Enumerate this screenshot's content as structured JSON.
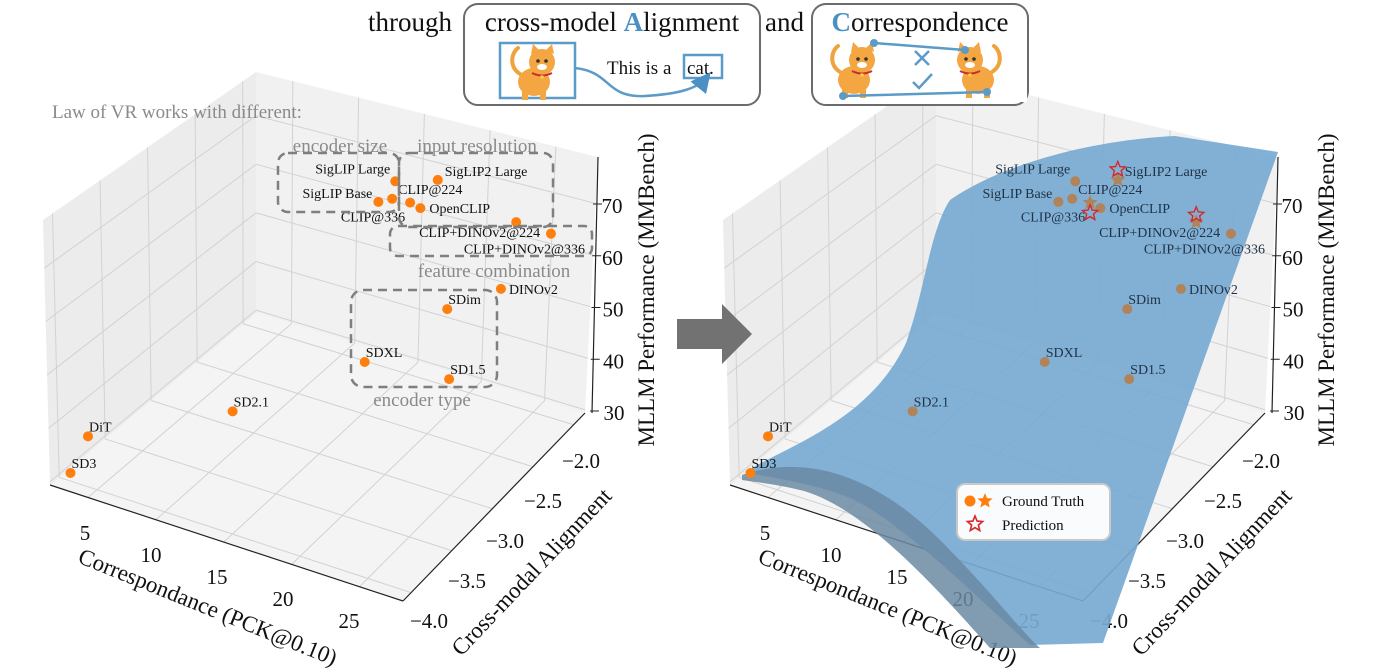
{
  "header": {
    "lead": "through",
    "box1_prefix": "cross-model ",
    "box1_highlight": "A",
    "box1_rest": "lignment",
    "connector": "and",
    "box2_highlight": "C",
    "box2_rest": "orrespondence",
    "caption_text": "This is a",
    "caption_word": "cat."
  },
  "annotations": {
    "intro": "Law of VR works with different:",
    "groups": [
      "encoder size",
      "input resolution",
      "feature combination",
      "encoder type"
    ]
  },
  "legend": {
    "ground_truth": "Ground Truth",
    "prediction": "Prediction"
  },
  "colors": {
    "point": "#ff7f0e",
    "point_under_surface": "#b0835a",
    "prediction": "#d62728",
    "surface": "#77aad1",
    "accent": "#4a90c2",
    "arrow": "#727272"
  },
  "chart_data": [
    {
      "type": "scatter3d",
      "title": "",
      "xlabel": "Correspondance (PCK@0.10)",
      "ylabel": "Cross-modal Alignment",
      "zlabel": "MLLM Performance (MMBench)",
      "xticks": [
        "5",
        "10",
        "15",
        "20",
        "25"
      ],
      "xtick_values": [
        5,
        10,
        15,
        20,
        25
      ],
      "yticks": [
        "−4.0",
        "−3.5",
        "−3.0",
        "−2.5",
        "−2.0"
      ],
      "ytick_values": [
        -4.0,
        -3.5,
        -3.0,
        -2.5,
        -2.0
      ],
      "zticks": [
        "30",
        "40",
        "50",
        "60",
        "70"
      ],
      "ztick_values": [
        30,
        40,
        50,
        60,
        70
      ],
      "xlim": [
        2.2,
        28.2
      ],
      "ylim": [
        -4.1,
        -1.86
      ],
      "zlim": [
        29.4,
        79
      ],
      "grid": true,
      "points": [
        {
          "name": "SD3",
          "x": 2.8,
          "y": -3.98,
          "z": 34
        },
        {
          "name": "DiT",
          "x": 3.5,
          "y": -3.87,
          "z": 40
        },
        {
          "name": "SD2.1",
          "x": 9.9,
          "y": -3.05,
          "z": 38
        },
        {
          "name": "SDXL",
          "x": 17.0,
          "y": -2.48,
          "z": 45
        },
        {
          "name": "SD1.5",
          "x": 21.5,
          "y": -2.11,
          "z": 40
        },
        {
          "name": "SDim",
          "x": 21.9,
          "y": -2.19,
          "z": 55
        },
        {
          "name": "DINOv2",
          "x": 25.5,
          "y": -2.06,
          "z": 60
        },
        {
          "name": "CLIP+DINOv2@336",
          "x": 28.3,
          "y": -1.86,
          "z": 70
        },
        {
          "name": "CLIP+DINOv2@224",
          "x": 25.8,
          "y": -1.92,
          "z": 71
        },
        {
          "name": "CLIP@336",
          "x": 18.5,
          "y": -2.15,
          "z": 72
        },
        {
          "name": "OpenCLIP",
          "x": 18.8,
          "y": -2.07,
          "z": 70
        },
        {
          "name": "CLIP@224",
          "x": 16.5,
          "y": -2.08,
          "z": 70
        },
        {
          "name": "SigLIP Base",
          "x": 15.2,
          "y": -2.06,
          "z": 68
        },
        {
          "name": "SigLIP Large",
          "x": 16.9,
          "y": -2.1,
          "z": 74
        },
        {
          "name": "SigLIP2 Large",
          "x": 19.7,
          "y": -1.99,
          "z": 75
        }
      ]
    },
    {
      "type": "scatter3d",
      "title": "",
      "xlabel": "Correspondance (PCK@0.10)",
      "ylabel": "Cross-modal Alignment",
      "zlabel": "MLLM Performance (MMBench)",
      "xticks": [
        "5",
        "10",
        "15",
        "20",
        "25"
      ],
      "xtick_values": [
        5,
        10,
        15,
        20,
        25
      ],
      "yticks": [
        "−4.0",
        "−3.5",
        "−3.0",
        "−2.5",
        "−2.0"
      ],
      "ytick_values": [
        -4.0,
        -3.5,
        -3.0,
        -2.5,
        -2.0
      ],
      "zticks": [
        "30",
        "40",
        "50",
        "60",
        "70"
      ],
      "ztick_values": [
        30,
        40,
        50,
        60,
        70
      ],
      "xlim": [
        2.2,
        28.2
      ],
      "ylim": [
        -4.1,
        -1.86
      ],
      "zlim": [
        29.4,
        79
      ],
      "grid": true,
      "legend_position": "bottom-center",
      "fitted_surface": true,
      "points": [
        {
          "name": "SD3",
          "x": 2.8,
          "y": -3.98,
          "z": 34,
          "marker": "dot",
          "under_surface": false
        },
        {
          "name": "DiT",
          "x": 3.5,
          "y": -3.87,
          "z": 40,
          "marker": "dot",
          "under_surface": false
        },
        {
          "name": "SD2.1",
          "x": 9.9,
          "y": -3.05,
          "z": 38,
          "marker": "dot",
          "under_surface": true
        },
        {
          "name": "SDXL",
          "x": 17.0,
          "y": -2.48,
          "z": 45,
          "marker": "dot",
          "under_surface": true
        },
        {
          "name": "SD1.5",
          "x": 21.5,
          "y": -2.11,
          "z": 40,
          "marker": "dot",
          "under_surface": true
        },
        {
          "name": "SDim",
          "x": 21.9,
          "y": -2.19,
          "z": 55,
          "marker": "dot",
          "under_surface": true
        },
        {
          "name": "DINOv2",
          "x": 25.5,
          "y": -2.06,
          "z": 60,
          "marker": "dot",
          "under_surface": true
        },
        {
          "name": "CLIP+DINOv2@336",
          "x": 28.3,
          "y": -1.86,
          "z": 70,
          "marker": "dot",
          "under_surface": true
        },
        {
          "name": "CLIP+DINOv2@224",
          "x": 25.8,
          "y": -1.92,
          "z": 71,
          "marker": "star",
          "under_surface": true
        },
        {
          "name": "CLIP@336",
          "x": 18.5,
          "y": -2.15,
          "z": 72,
          "marker": "star",
          "under_surface": true
        },
        {
          "name": "OpenCLIP",
          "x": 18.8,
          "y": -2.07,
          "z": 70,
          "marker": "dot",
          "under_surface": true
        },
        {
          "name": "CLIP@224",
          "x": 16.5,
          "y": -2.08,
          "z": 70,
          "marker": "dot",
          "under_surface": true
        },
        {
          "name": "SigLIP Base",
          "x": 15.2,
          "y": -2.06,
          "z": 68,
          "marker": "dot",
          "under_surface": true
        },
        {
          "name": "SigLIP Large",
          "x": 16.9,
          "y": -2.1,
          "z": 74,
          "marker": "dot",
          "under_surface": true
        },
        {
          "name": "SigLIP2 Large",
          "x": 19.7,
          "y": -1.99,
          "z": 75,
          "marker": "star",
          "under_surface": true
        }
      ],
      "predictions": [
        {
          "name": "SigLIP2 Large",
          "x": 19.7,
          "y": -1.99,
          "z": 77
        },
        {
          "name": "CLIP@336",
          "x": 18.5,
          "y": -2.15,
          "z": 70
        },
        {
          "name": "CLIP+DINOv2@224",
          "x": 25.8,
          "y": -1.92,
          "z": 72.4
        }
      ]
    }
  ]
}
